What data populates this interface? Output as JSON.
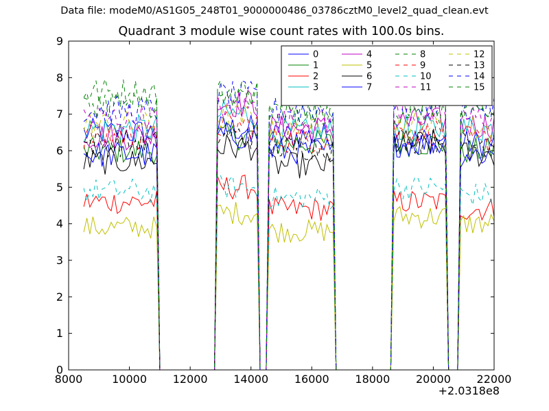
{
  "figure": {
    "suptitle": "Data file: modeM0/AS1G05_248T01_9000000486_03786cztM0_level2_quad_clean.evt",
    "x_offset_label": "+2.0318e8"
  },
  "chart_data": {
    "type": "line",
    "title": "Quadrant 3 module wise count rates with 100.0s bins.",
    "xlabel": "",
    "ylabel": "",
    "xlim": [
      8000,
      22000
    ],
    "ylim": [
      0,
      9
    ],
    "x_ticks": [
      8000,
      10000,
      12000,
      14000,
      16000,
      18000,
      20000,
      22000
    ],
    "y_ticks": [
      0,
      1,
      2,
      3,
      4,
      5,
      6,
      7,
      8,
      9
    ],
    "x_tick_labels": [
      "8000",
      "10000",
      "12000",
      "14000",
      "16000",
      "18000",
      "20000",
      "22000"
    ],
    "y_tick_labels": [
      "0",
      "1",
      "2",
      "3",
      "4",
      "5",
      "6",
      "7",
      "8",
      "9"
    ],
    "grid": false,
    "legend_position": "top-right",
    "legend_columns": 4,
    "time_bin_s": 100,
    "data_segments": [
      [
        8500,
        10900
      ],
      [
        12900,
        14200
      ],
      [
        14600,
        16700
      ],
      [
        18700,
        20400
      ],
      [
        20900,
        22000
      ]
    ],
    "series": [
      {
        "name": "0",
        "color": "#0000ff",
        "dashed": false,
        "levels": [
          6.5,
          6.6,
          6.4,
          6.3,
          6.2
        ]
      },
      {
        "name": "1",
        "color": "#008000",
        "dashed": false,
        "levels": [
          6.0,
          6.4,
          6.2,
          6.2,
          6.0
        ]
      },
      {
        "name": "2",
        "color": "#ff0000",
        "dashed": false,
        "levels": [
          4.6,
          5.0,
          4.4,
          4.6,
          4.4
        ]
      },
      {
        "name": "3",
        "color": "#00bfbf",
        "dashed": false,
        "levels": [
          6.6,
          7.0,
          6.5,
          6.6,
          6.6
        ]
      },
      {
        "name": "4",
        "color": "#bf00bf",
        "dashed": false,
        "levels": [
          6.4,
          7.3,
          6.6,
          6.8,
          6.7
        ]
      },
      {
        "name": "5",
        "color": "#bfbf00",
        "dashed": false,
        "levels": [
          3.9,
          4.3,
          3.8,
          4.2,
          4.0
        ]
      },
      {
        "name": "6",
        "color": "#000000",
        "dashed": false,
        "levels": [
          5.7,
          6.1,
          5.6,
          6.2,
          5.9
        ]
      },
      {
        "name": "7",
        "color": "#0000ff",
        "dashed": false,
        "levels": [
          5.9,
          6.4,
          6.0,
          6.2,
          5.9
        ]
      },
      {
        "name": "8",
        "color": "#008000",
        "dashed": true,
        "levels": [
          7.6,
          7.6,
          7.1,
          7.3,
          7.2
        ]
      },
      {
        "name": "9",
        "color": "#ff0000",
        "dashed": true,
        "levels": [
          6.4,
          6.7,
          6.3,
          6.5,
          6.3
        ]
      },
      {
        "name": "10",
        "color": "#00bfbf",
        "dashed": true,
        "levels": [
          4.9,
          5.0,
          4.7,
          5.0,
          4.8
        ]
      },
      {
        "name": "11",
        "color": "#bf00bf",
        "dashed": true,
        "levels": [
          6.9,
          7.2,
          6.8,
          7.0,
          6.9
        ]
      },
      {
        "name": "12",
        "color": "#bfbf00",
        "dashed": true,
        "levels": [
          6.7,
          6.9,
          6.5,
          6.7,
          6.6
        ]
      },
      {
        "name": "13",
        "color": "#000000",
        "dashed": true,
        "levels": [
          6.2,
          6.4,
          6.1,
          6.3,
          6.2
        ]
      },
      {
        "name": "14",
        "color": "#0000ff",
        "dashed": true,
        "levels": [
          7.1,
          7.5,
          7.1,
          7.3,
          7.2
        ]
      },
      {
        "name": "15",
        "color": "#008000",
        "dashed": true,
        "levels": [
          7.3,
          7.4,
          7.0,
          7.1,
          7.0
        ]
      }
    ]
  }
}
